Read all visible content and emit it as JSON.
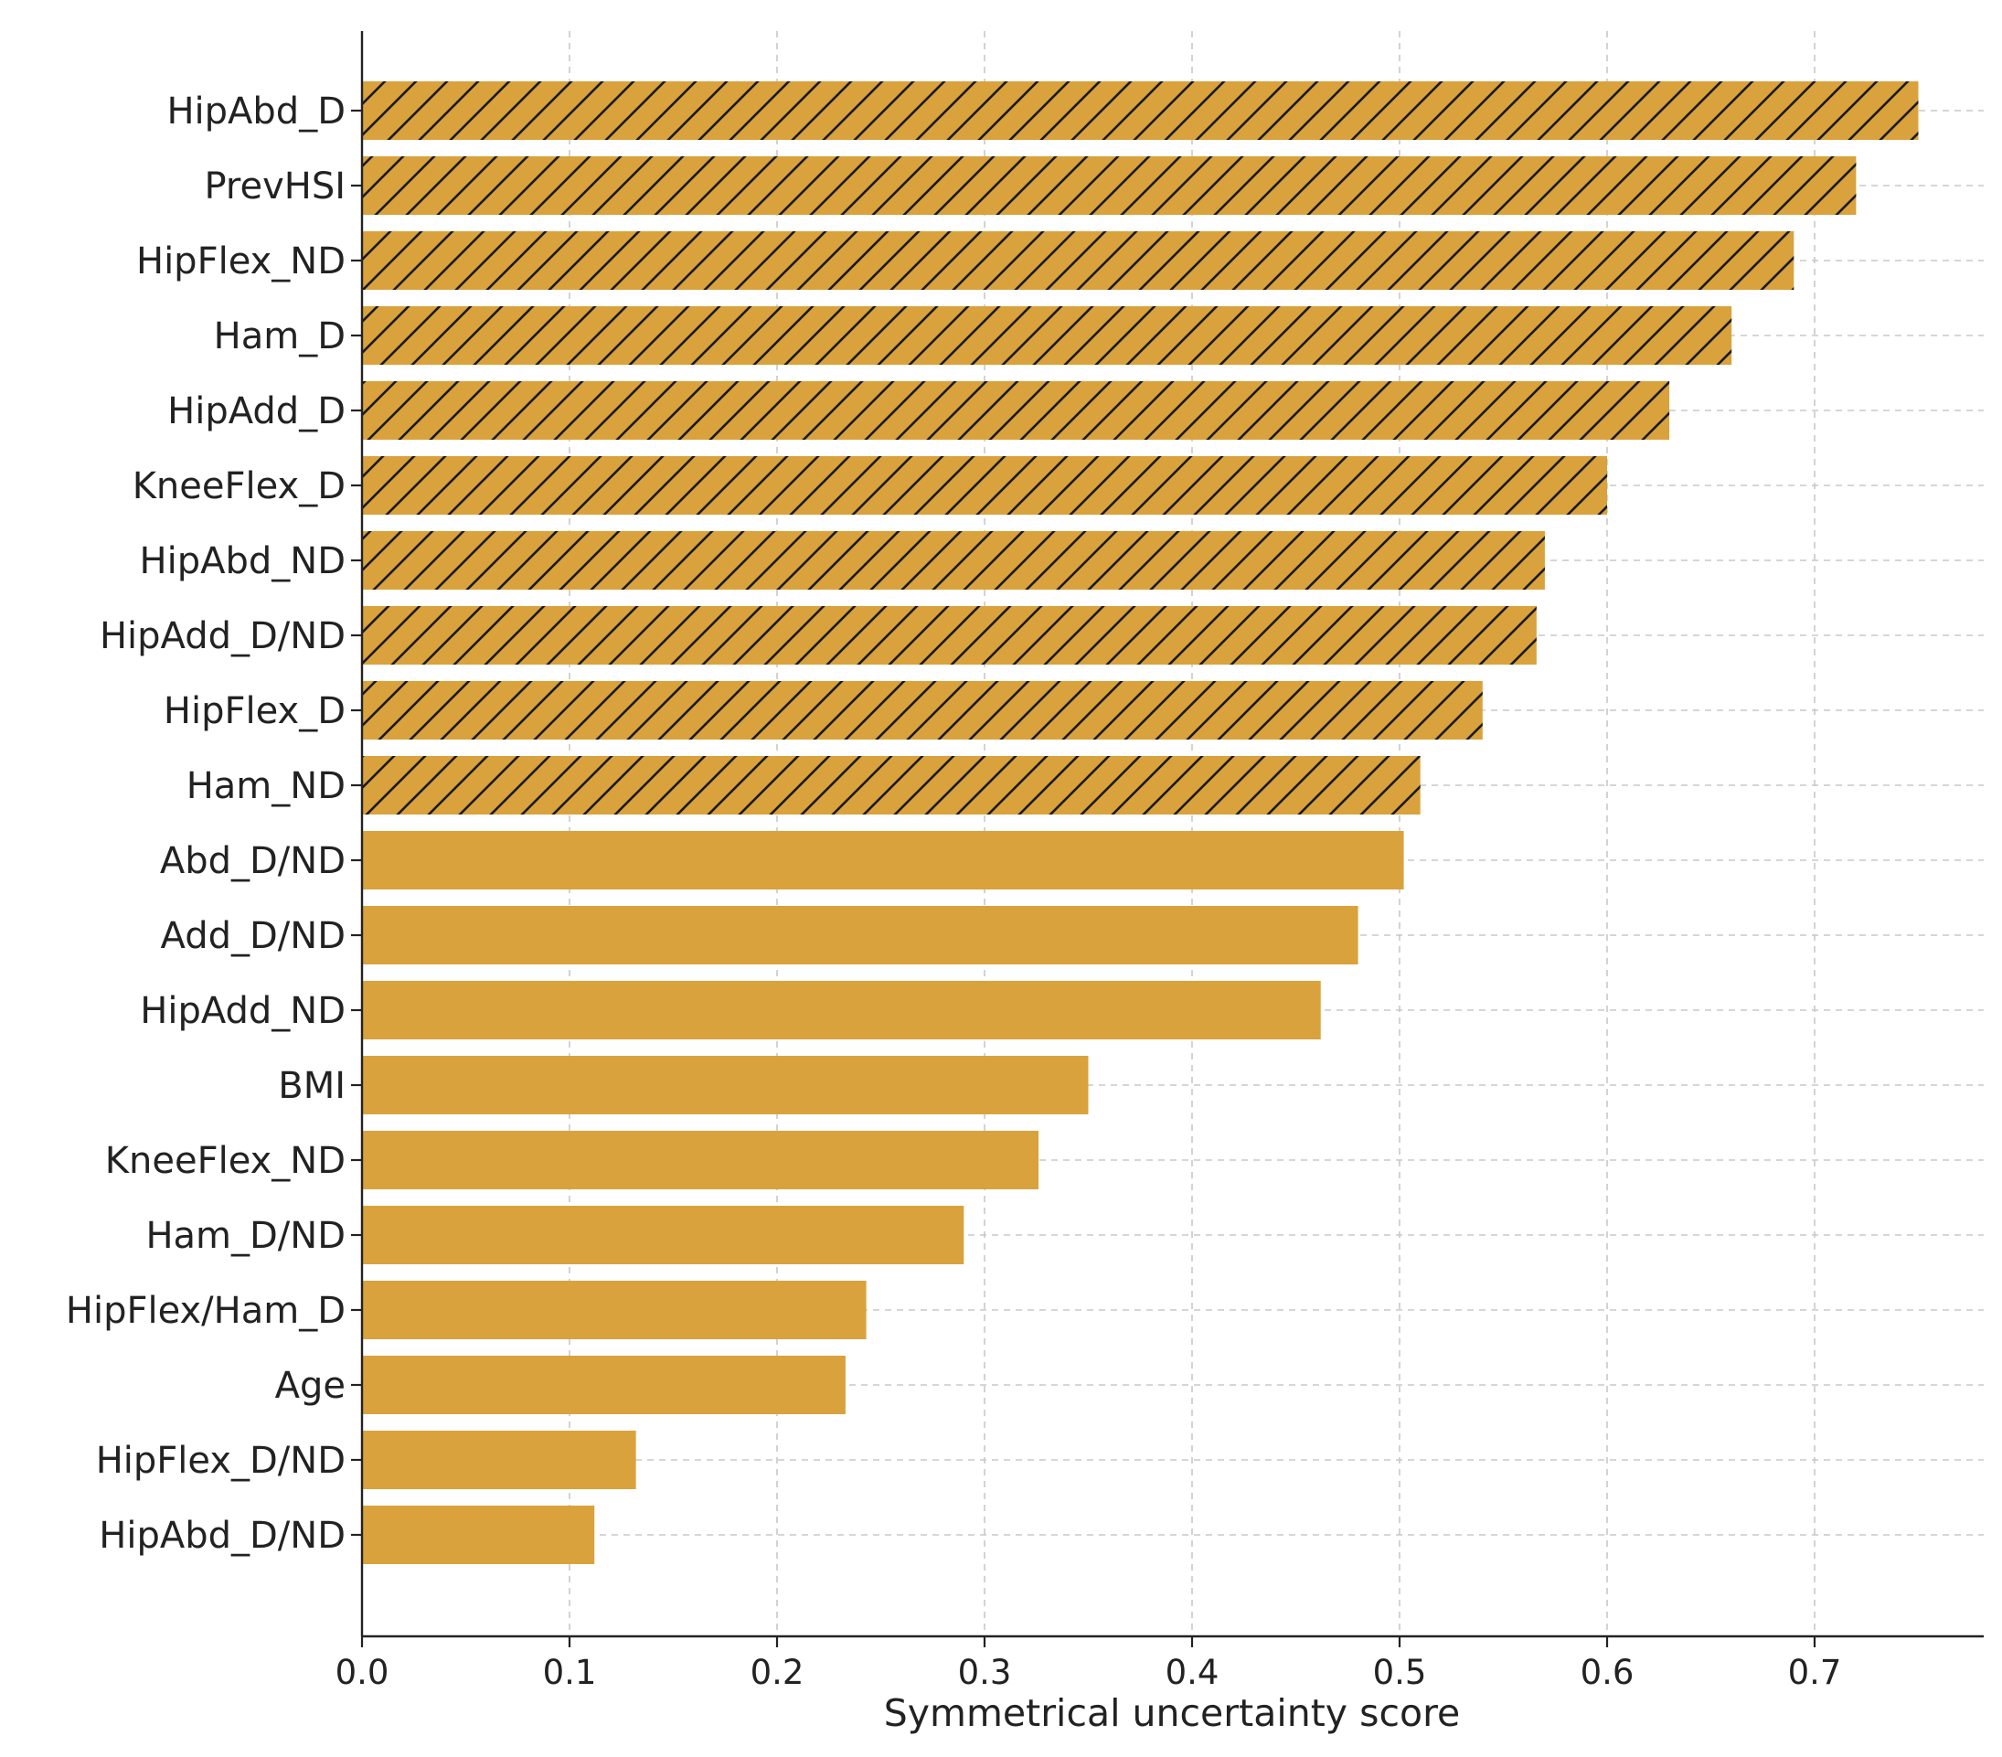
{
  "chart_data": {
    "type": "bar",
    "orientation": "horizontal",
    "categories": [
      "HipAbd_D",
      "PrevHSI",
      "HipFlex_ND",
      "Ham_D",
      "HipAdd_D",
      "KneeFlex_D",
      "HipAbd_ND",
      "HipAdd_D/ND",
      "HipFlex_D",
      "Ham_ND",
      "Abd_D/ND",
      "Add_D/ND",
      "HipAdd_ND",
      "BMI",
      "KneeFlex_ND",
      "Ham_D/ND",
      "HipFlex/Ham_D",
      "Age",
      "HipFlex_D/ND",
      "HipAbd_D/ND"
    ],
    "values": [
      0.75,
      0.72,
      0.69,
      0.66,
      0.63,
      0.6,
      0.57,
      0.566,
      0.54,
      0.51,
      0.502,
      0.48,
      0.462,
      0.35,
      0.326,
      0.29,
      0.243,
      0.233,
      0.132,
      0.112
    ],
    "hatched": [
      true,
      true,
      true,
      true,
      true,
      true,
      true,
      true,
      true,
      true,
      false,
      false,
      false,
      false,
      false,
      false,
      false,
      false,
      false,
      false
    ],
    "xlabel": "Symmetrical uncertainty score",
    "ylabel": "",
    "title": "",
    "xlim": [
      0.0,
      0.78
    ],
    "xticks": [
      0.0,
      0.1,
      0.2,
      0.3,
      0.4,
      0.5,
      0.6,
      0.7
    ],
    "xtick_labels": [
      "0.0",
      "0.1",
      "0.2",
      "0.3",
      "0.4",
      "0.5",
      "0.6",
      "0.7"
    ],
    "grid": true,
    "bar_color": "#D9A23C",
    "hatch_color": "#1a1a1a"
  }
}
